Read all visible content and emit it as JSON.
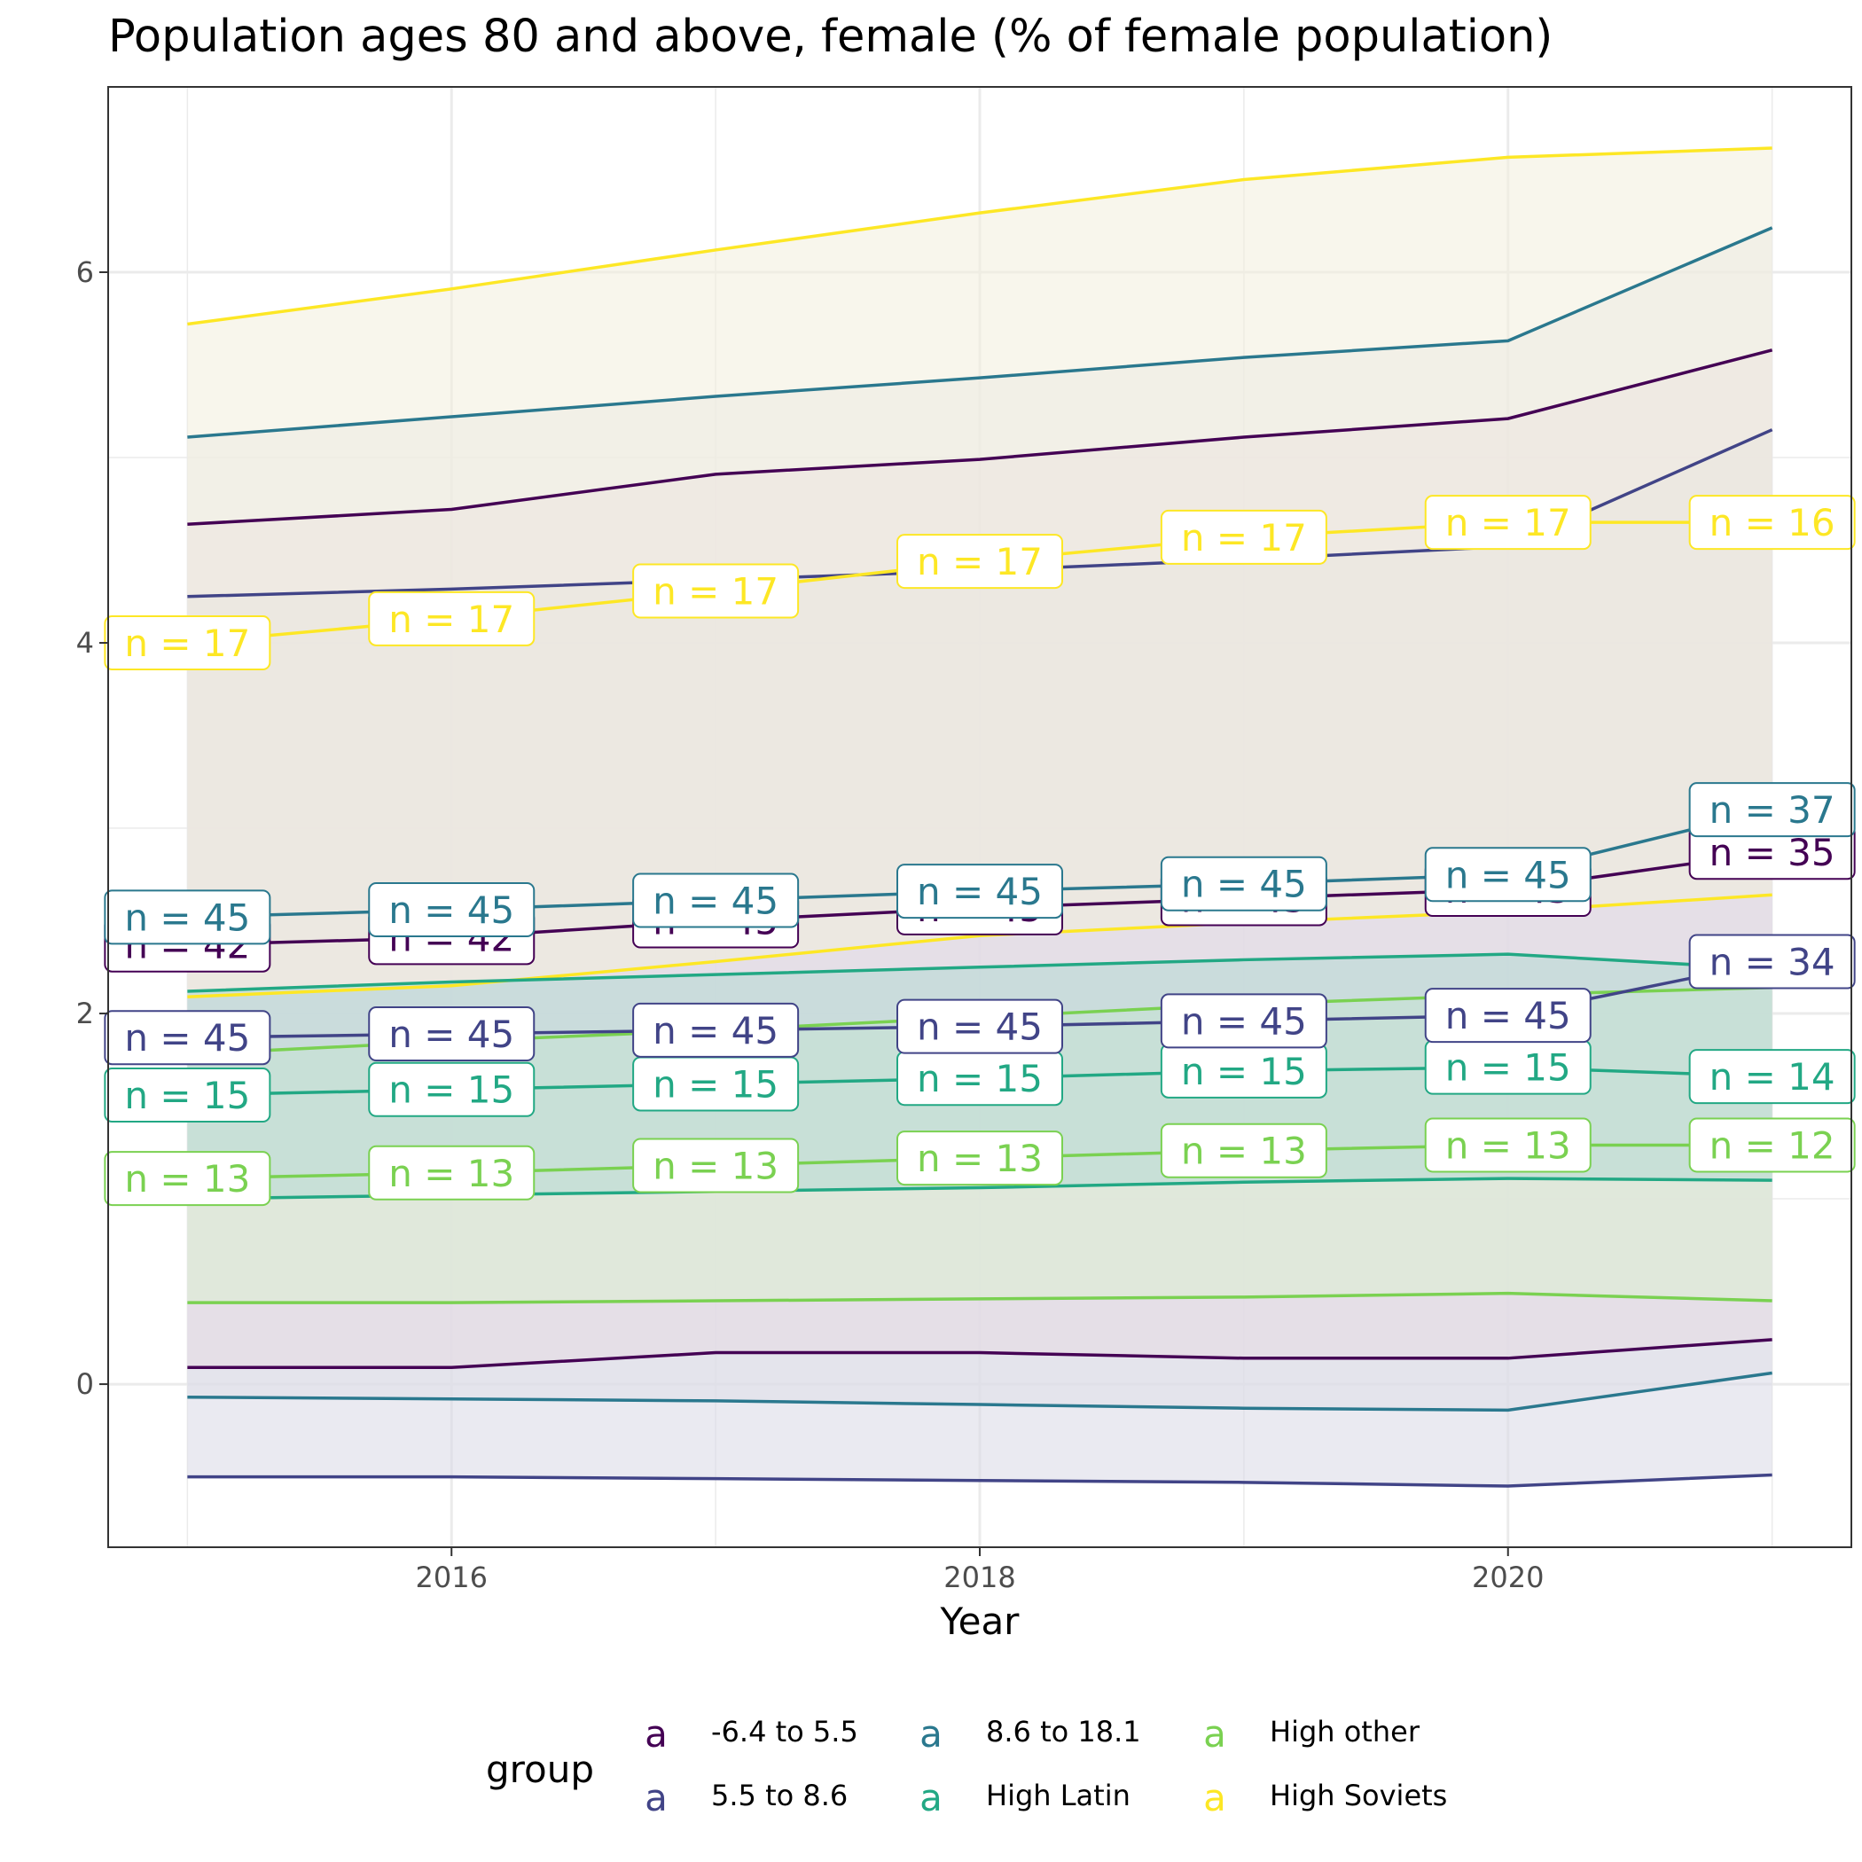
{
  "chart_data": {
    "type": "line",
    "title": "Population ages 80 and above, female (% of female population)",
    "xlabel": "Year",
    "ylabel": "",
    "x": [
      2015,
      2016,
      2017,
      2018,
      2019,
      2020,
      2021
    ],
    "xlim": [
      2014.7,
      2021.3
    ],
    "ylim": [
      -0.88,
      7.0
    ],
    "x_ticks": [
      2016,
      2018,
      2020
    ],
    "y_ticks": [
      0,
      2,
      4,
      6
    ],
    "grid": true,
    "legend": {
      "title": "group",
      "position": "bottom",
      "key_glyph": "a",
      "columns": [
        [
          "-6.4 to 5.5",
          "5.5 to 8.6"
        ],
        [
          "8.6 to 18.1",
          "High Latin"
        ],
        [
          "High other",
          "High Soviets"
        ]
      ]
    },
    "series": [
      {
        "name": "High Soviets",
        "color": "#FDE725",
        "fill": "#F3EFDC",
        "mean": [
          4.0,
          4.13,
          4.28,
          4.44,
          4.57,
          4.65,
          4.65
        ],
        "upper": [
          5.72,
          5.91,
          6.12,
          6.32,
          6.5,
          6.62,
          6.67
        ],
        "lower": [
          2.09,
          2.15,
          2.28,
          2.42,
          2.49,
          2.55,
          2.64
        ],
        "n": [
          17,
          17,
          17,
          17,
          17,
          17,
          16
        ]
      },
      {
        "name": "High other",
        "color": "#7AD151",
        "fill": "#DDEFD2",
        "mean": [
          1.11,
          1.14,
          1.18,
          1.22,
          1.26,
          1.29,
          1.29
        ],
        "upper": [
          1.78,
          1.85,
          1.91,
          1.98,
          2.05,
          2.1,
          2.14
        ],
        "lower": [
          0.44,
          0.44,
          0.45,
          0.46,
          0.47,
          0.49,
          0.45
        ],
        "n": [
          13,
          13,
          13,
          13,
          13,
          13,
          12
        ]
      },
      {
        "name": "High Latin",
        "color": "#22A884",
        "fill": "#B4D9D3",
        "mean": [
          1.56,
          1.59,
          1.62,
          1.65,
          1.69,
          1.71,
          1.66
        ],
        "upper": [
          2.12,
          2.17,
          2.21,
          2.25,
          2.29,
          2.32,
          2.24
        ],
        "lower": [
          1.0,
          1.02,
          1.04,
          1.06,
          1.09,
          1.11,
          1.1
        ],
        "n": [
          15,
          15,
          15,
          15,
          15,
          15,
          14
        ]
      },
      {
        "name": "5.5 to 8.6",
        "color": "#414487",
        "fill": "#D9D9E6",
        "mean": [
          1.87,
          1.89,
          1.91,
          1.93,
          1.96,
          1.99,
          2.28
        ],
        "upper": [
          4.25,
          4.29,
          4.34,
          4.39,
          4.45,
          4.52,
          5.15
        ],
        "lower": [
          -0.5,
          -0.5,
          -0.51,
          -0.52,
          -0.53,
          -0.55,
          -0.49
        ],
        "n": [
          45,
          45,
          45,
          45,
          45,
          45,
          34
        ]
      },
      {
        "name": "-6.4 to 5.5",
        "color": "#440154",
        "fill": "#E6DAE3",
        "mean": [
          2.37,
          2.41,
          2.5,
          2.57,
          2.62,
          2.67,
          2.87
        ],
        "upper": [
          4.64,
          4.72,
          4.91,
          4.99,
          5.11,
          5.21,
          5.58
        ],
        "lower": [
          0.09,
          0.09,
          0.17,
          0.17,
          0.14,
          0.14,
          0.24
        ],
        "n": [
          42,
          42,
          45,
          45,
          45,
          45,
          35
        ]
      },
      {
        "name": "8.6 to 18.1",
        "color": "#2A788E",
        "fill": "#E7E8EB",
        "mean": [
          2.52,
          2.56,
          2.61,
          2.66,
          2.7,
          2.75,
          3.1
        ],
        "upper": [
          5.11,
          5.22,
          5.33,
          5.43,
          5.54,
          5.63,
          6.24
        ],
        "lower": [
          -0.07,
          -0.08,
          -0.09,
          -0.11,
          -0.13,
          -0.14,
          0.06
        ],
        "n": [
          45,
          45,
          45,
          45,
          45,
          45,
          37
        ]
      }
    ]
  }
}
